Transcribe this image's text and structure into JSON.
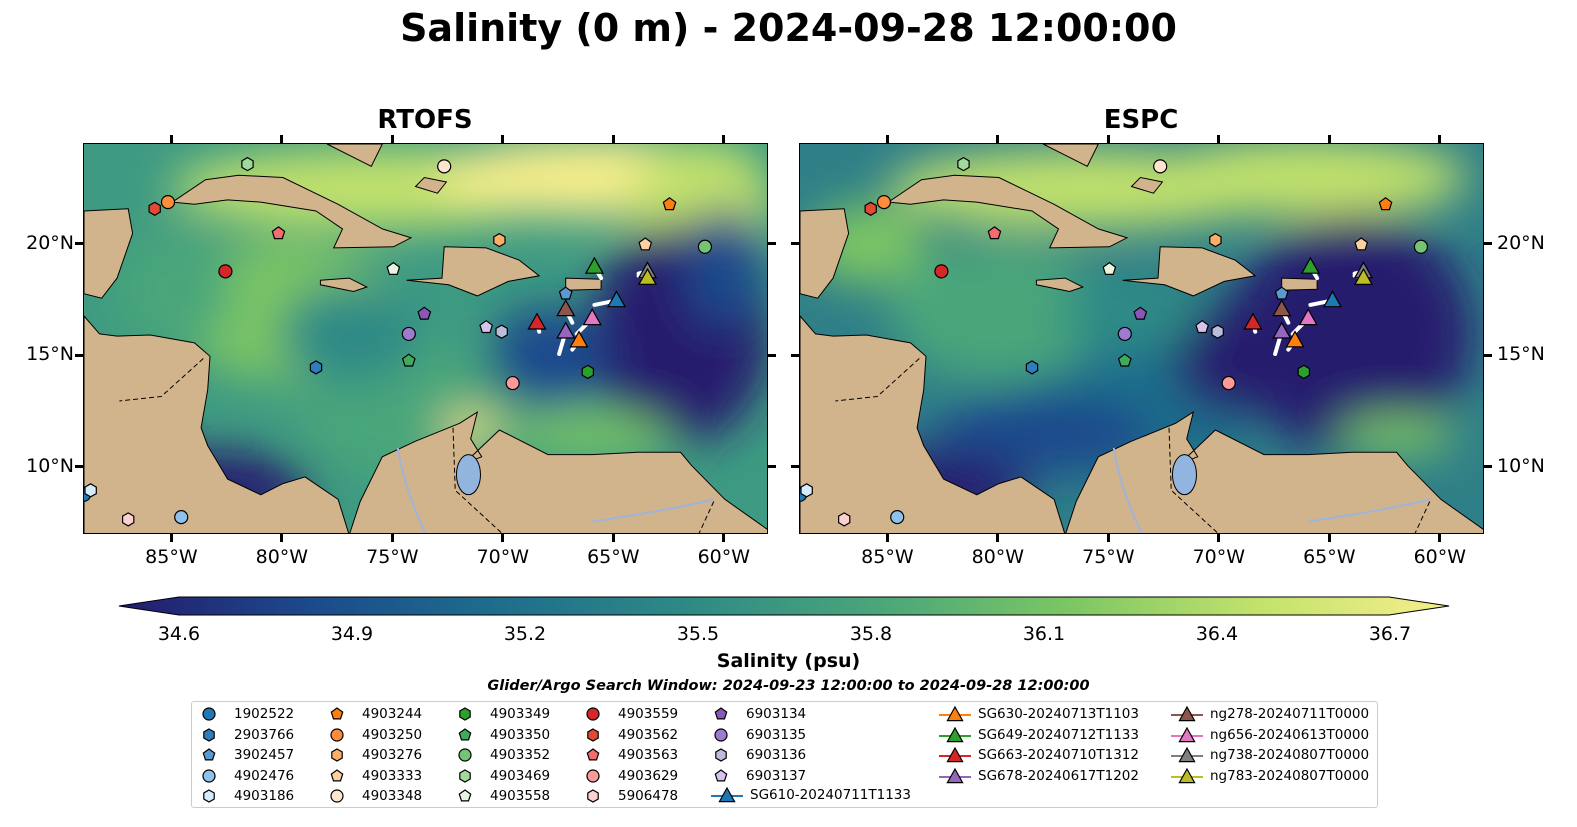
{
  "title": "Salinity (0 m) - 2024-09-28 12:00:00",
  "panels": [
    {
      "title": "RTOFS"
    },
    {
      "title": "ESPC"
    }
  ],
  "axes": {
    "lon_ticks": [
      "85°W",
      "80°W",
      "75°W",
      "70°W",
      "65°W",
      "60°W"
    ],
    "lat_ticks": [
      "20°N",
      "15°N",
      "10°N"
    ],
    "lon_range": [
      -89,
      -58
    ],
    "lat_range": [
      7,
      24.5
    ]
  },
  "colorbar": {
    "label": "Salinity (psu)",
    "ticks": [
      "34.6",
      "34.9",
      "35.2",
      "35.5",
      "35.8",
      "36.1",
      "36.4",
      "36.7"
    ],
    "range": [
      34.6,
      36.7
    ],
    "colors": [
      "#251b6e",
      "#1c4a8c",
      "#1e6e8c",
      "#2f8a86",
      "#4aa67a",
      "#7cc664",
      "#c2e26c",
      "#f7ee8b"
    ]
  },
  "search_window": "Glider/Argo Search Window: 2024-09-23 12:00:00 to 2024-09-28 12:00:00",
  "legend": {
    "floats": [
      {
        "id": "1902522",
        "color": "#1f77b4",
        "marker": "circle",
        "lon": -89.0,
        "lat": 8.8
      },
      {
        "id": "2903766",
        "color": "#2f7dbd",
        "marker": "hexagon",
        "lon": -78.5,
        "lat": 14.5
      },
      {
        "id": "3902457",
        "color": "#5a9ad3",
        "marker": "pentagon",
        "lon": -67.2,
        "lat": 17.8
      },
      {
        "id": "4902476",
        "color": "#8fc1ea",
        "marker": "circle",
        "lon": -84.6,
        "lat": 7.8
      },
      {
        "id": "4903186",
        "color": "#d6ebfb",
        "marker": "hexagon",
        "lon": -88.7,
        "lat": 9.0
      },
      {
        "id": "4903244",
        "color": "#ff7f0e",
        "marker": "pentagon",
        "lon": -62.5,
        "lat": 21.8
      },
      {
        "id": "4903250",
        "color": "#fd8d3c",
        "marker": "circle",
        "lon": -85.2,
        "lat": 21.9
      },
      {
        "id": "4903276",
        "color": "#fdae6b",
        "marker": "hexagon",
        "lon": -70.2,
        "lat": 20.2
      },
      {
        "id": "4903333",
        "color": "#fdd0a2",
        "marker": "pentagon",
        "lon": -63.6,
        "lat": 20.0
      },
      {
        "id": "4903348",
        "color": "#fee6ce",
        "marker": "circle",
        "lon": -72.7,
        "lat": 23.5
      },
      {
        "id": "4903349",
        "color": "#2ca02c",
        "marker": "hexagon",
        "lon": -66.2,
        "lat": 14.3
      },
      {
        "id": "4903350",
        "color": "#41ab5d",
        "marker": "pentagon",
        "lon": -74.3,
        "lat": 14.8
      },
      {
        "id": "4903352",
        "color": "#74c476",
        "marker": "circle",
        "lon": -60.9,
        "lat": 19.9
      },
      {
        "id": "4903469",
        "color": "#a1d99b",
        "marker": "hexagon",
        "lon": -81.6,
        "lat": 23.6
      },
      {
        "id": "4903558",
        "color": "#e5f5e0",
        "marker": "pentagon",
        "lon": -75.0,
        "lat": 18.9
      },
      {
        "id": "4903559",
        "color": "#d62728",
        "marker": "circle",
        "lon": -82.6,
        "lat": 18.8
      },
      {
        "id": "4903562",
        "color": "#e34a33",
        "marker": "hexagon",
        "lon": -85.8,
        "lat": 21.6
      },
      {
        "id": "4903563",
        "color": "#f46d6d",
        "marker": "pentagon",
        "lon": -80.2,
        "lat": 20.5
      },
      {
        "id": "4903629",
        "color": "#fc9a9a",
        "marker": "circle",
        "lon": -69.6,
        "lat": 13.8
      },
      {
        "id": "5906478",
        "color": "#fcd1d1",
        "marker": "hexagon",
        "lon": -87.0,
        "lat": 7.7
      },
      {
        "id": "6903134",
        "color": "#8a56b8",
        "marker": "pentagon",
        "lon": -73.6,
        "lat": 16.9
      },
      {
        "id": "6903135",
        "color": "#9e7ad0",
        "marker": "circle",
        "lon": -74.3,
        "lat": 16.0
      },
      {
        "id": "6903136",
        "color": "#bcbddc",
        "marker": "hexagon",
        "lon": -70.1,
        "lat": 16.1
      },
      {
        "id": "6903137",
        "color": "#d6c4ef",
        "marker": "pentagon",
        "lon": -70.8,
        "lat": 16.3
      }
    ],
    "gliders": [
      {
        "id": "SG610-20240711T1133",
        "color": "#1f77b4",
        "lon": -64.9,
        "lat": 17.5,
        "track": [
          [
            -65.9,
            17.3
          ],
          [
            -64.9,
            17.5
          ]
        ]
      },
      {
        "id": "SG630-20240713T1103",
        "color": "#ff7f0e",
        "lon": -66.6,
        "lat": 15.7,
        "track": [
          [
            -66.9,
            15.3
          ],
          [
            -66.6,
            15.7
          ]
        ]
      },
      {
        "id": "SG649-20240712T1133",
        "color": "#2ca02c",
        "lon": -65.9,
        "lat": 19.0,
        "track": [
          [
            -65.6,
            18.5
          ],
          [
            -65.9,
            19.0
          ]
        ]
      },
      {
        "id": "SG663-20240710T1312",
        "color": "#d62728",
        "lon": -68.5,
        "lat": 16.5,
        "track": [
          [
            -68.4,
            16.1
          ],
          [
            -68.5,
            16.5
          ]
        ]
      },
      {
        "id": "SG678-20240617T1202",
        "color": "#9467bd",
        "lon": -67.2,
        "lat": 16.1,
        "track": [
          [
            -67.5,
            15.1
          ],
          [
            -67.2,
            16.1
          ]
        ]
      },
      {
        "id": "ng278-20240711T0000",
        "color": "#8c564b",
        "lon": -67.2,
        "lat": 17.1,
        "track": [
          [
            -66.9,
            16.5
          ],
          [
            -67.2,
            17.1
          ]
        ]
      },
      {
        "id": "ng656-20240613T0000",
        "color": "#e377c2",
        "lon": -66.0,
        "lat": 16.7,
        "track": [
          [
            -66.7,
            16.0
          ],
          [
            -66.0,
            16.7
          ]
        ]
      },
      {
        "id": "ng738-20240807T0000",
        "color": "#7f7f7f",
        "lon": -63.5,
        "lat": 18.8,
        "track": [
          [
            -63.9,
            18.7
          ],
          [
            -63.5,
            18.8
          ]
        ]
      },
      {
        "id": "ng783-20240807T0000",
        "color": "#bcbd22",
        "lon": -63.5,
        "lat": 18.5,
        "track": [
          [
            -63.9,
            18.6
          ],
          [
            -63.5,
            18.5
          ]
        ]
      }
    ]
  }
}
